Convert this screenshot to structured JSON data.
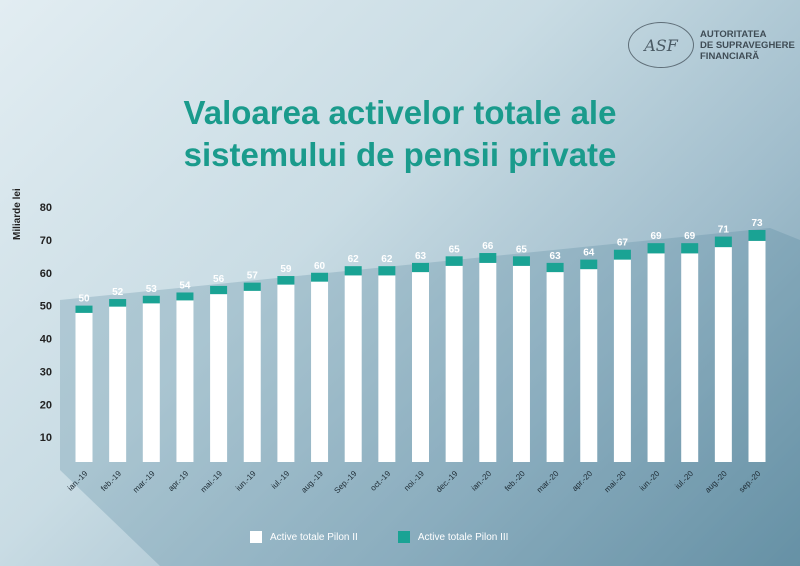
{
  "logo": {
    "text_lines": [
      "AUTORITATEA",
      "DE SUPRAVEGHERE",
      "FINANCIARĂ"
    ],
    "seal_text": "ROMÂNIA AUTORITATEA DE SUPRAVEGHERE FINANCIARĂ ASF"
  },
  "chart_data": {
    "type": "bar",
    "stacked": true,
    "title": "Valoarea activelor totale ale sistemului de pensii private",
    "title_lines": [
      "Valoarea activelor totale ale",
      "sistemului de pensii private"
    ],
    "xlabel": "",
    "ylabel": "Miliarde lei",
    "ylim": [
      0,
      80
    ],
    "yticks": [
      10,
      20,
      30,
      40,
      50,
      60,
      70,
      80
    ],
    "grid": false,
    "legend_position": "bottom",
    "categories": [
      "ian.-19",
      "feb.-19",
      "mar.-19",
      "apr.-19",
      "mai.-19",
      "iun.-19",
      "iul.-19",
      "aug.-19",
      "Sep.-19",
      "oct.-19",
      "noi.-19",
      "dec.-19",
      "ian.-20",
      "feb.-20",
      "mar.-20",
      "apr.-20",
      "mai.-20",
      "iun.-20",
      "iul.-20",
      "aug.-20",
      "sep.-20"
    ],
    "totals": [
      50,
      52,
      53,
      54,
      56,
      57,
      59,
      60,
      62,
      62,
      63,
      65,
      66,
      65,
      63,
      64,
      67,
      69,
      69,
      71,
      73
    ],
    "series": [
      {
        "name": "Active totale Pilon II",
        "color": "#ffffff",
        "values": [
          47.8,
          49.7,
          50.7,
          51.6,
          53.5,
          54.5,
          56.4,
          57.3,
          59.2,
          59.2,
          60.2,
          62.1,
          63.0,
          62.1,
          60.2,
          61.1,
          64.0,
          65.9,
          65.9,
          67.8,
          69.7
        ]
      },
      {
        "name": "Active totale Pilon III",
        "color": "#1aa394",
        "values": [
          2.2,
          2.3,
          2.3,
          2.4,
          2.5,
          2.5,
          2.6,
          2.7,
          2.8,
          2.8,
          2.8,
          2.9,
          3.0,
          2.9,
          2.8,
          2.9,
          3.0,
          3.1,
          3.1,
          3.2,
          3.3
        ]
      }
    ]
  }
}
